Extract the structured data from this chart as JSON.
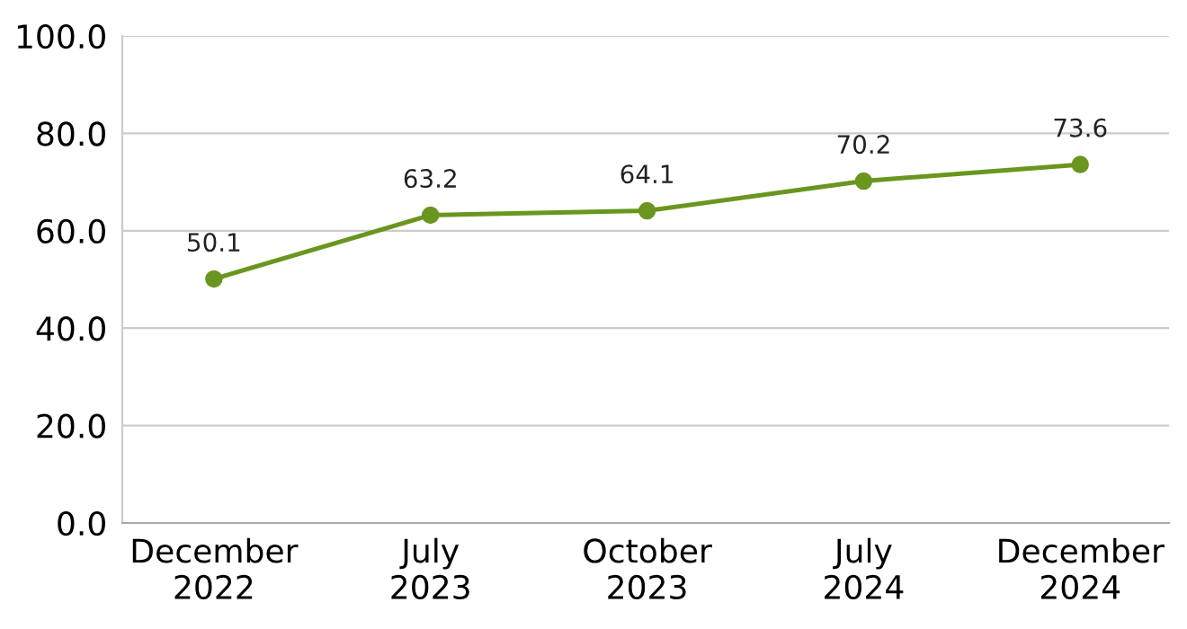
{
  "chart_data": {
    "type": "line",
    "categories": [
      "December\n2022",
      "July\n2023",
      "October\n2023",
      "July\n2024",
      "December\n2024"
    ],
    "series": [
      {
        "color": "#6a961f",
        "values": [
          50.1,
          63.2,
          64.1,
          70.2,
          73.6
        ]
      }
    ],
    "ylim": [
      0,
      100
    ],
    "yticks": [
      {
        "value": 0,
        "label": "0.0"
      },
      {
        "value": 20,
        "label": "20.0"
      },
      {
        "value": 40,
        "label": "40.0"
      },
      {
        "value": 60,
        "label": "60.0"
      },
      {
        "value": 80,
        "label": "80.0"
      },
      {
        "value": 100,
        "label": "100.0"
      }
    ],
    "grid": "y",
    "marker": "circle",
    "line_style": "solid",
    "data_labels": true
  }
}
